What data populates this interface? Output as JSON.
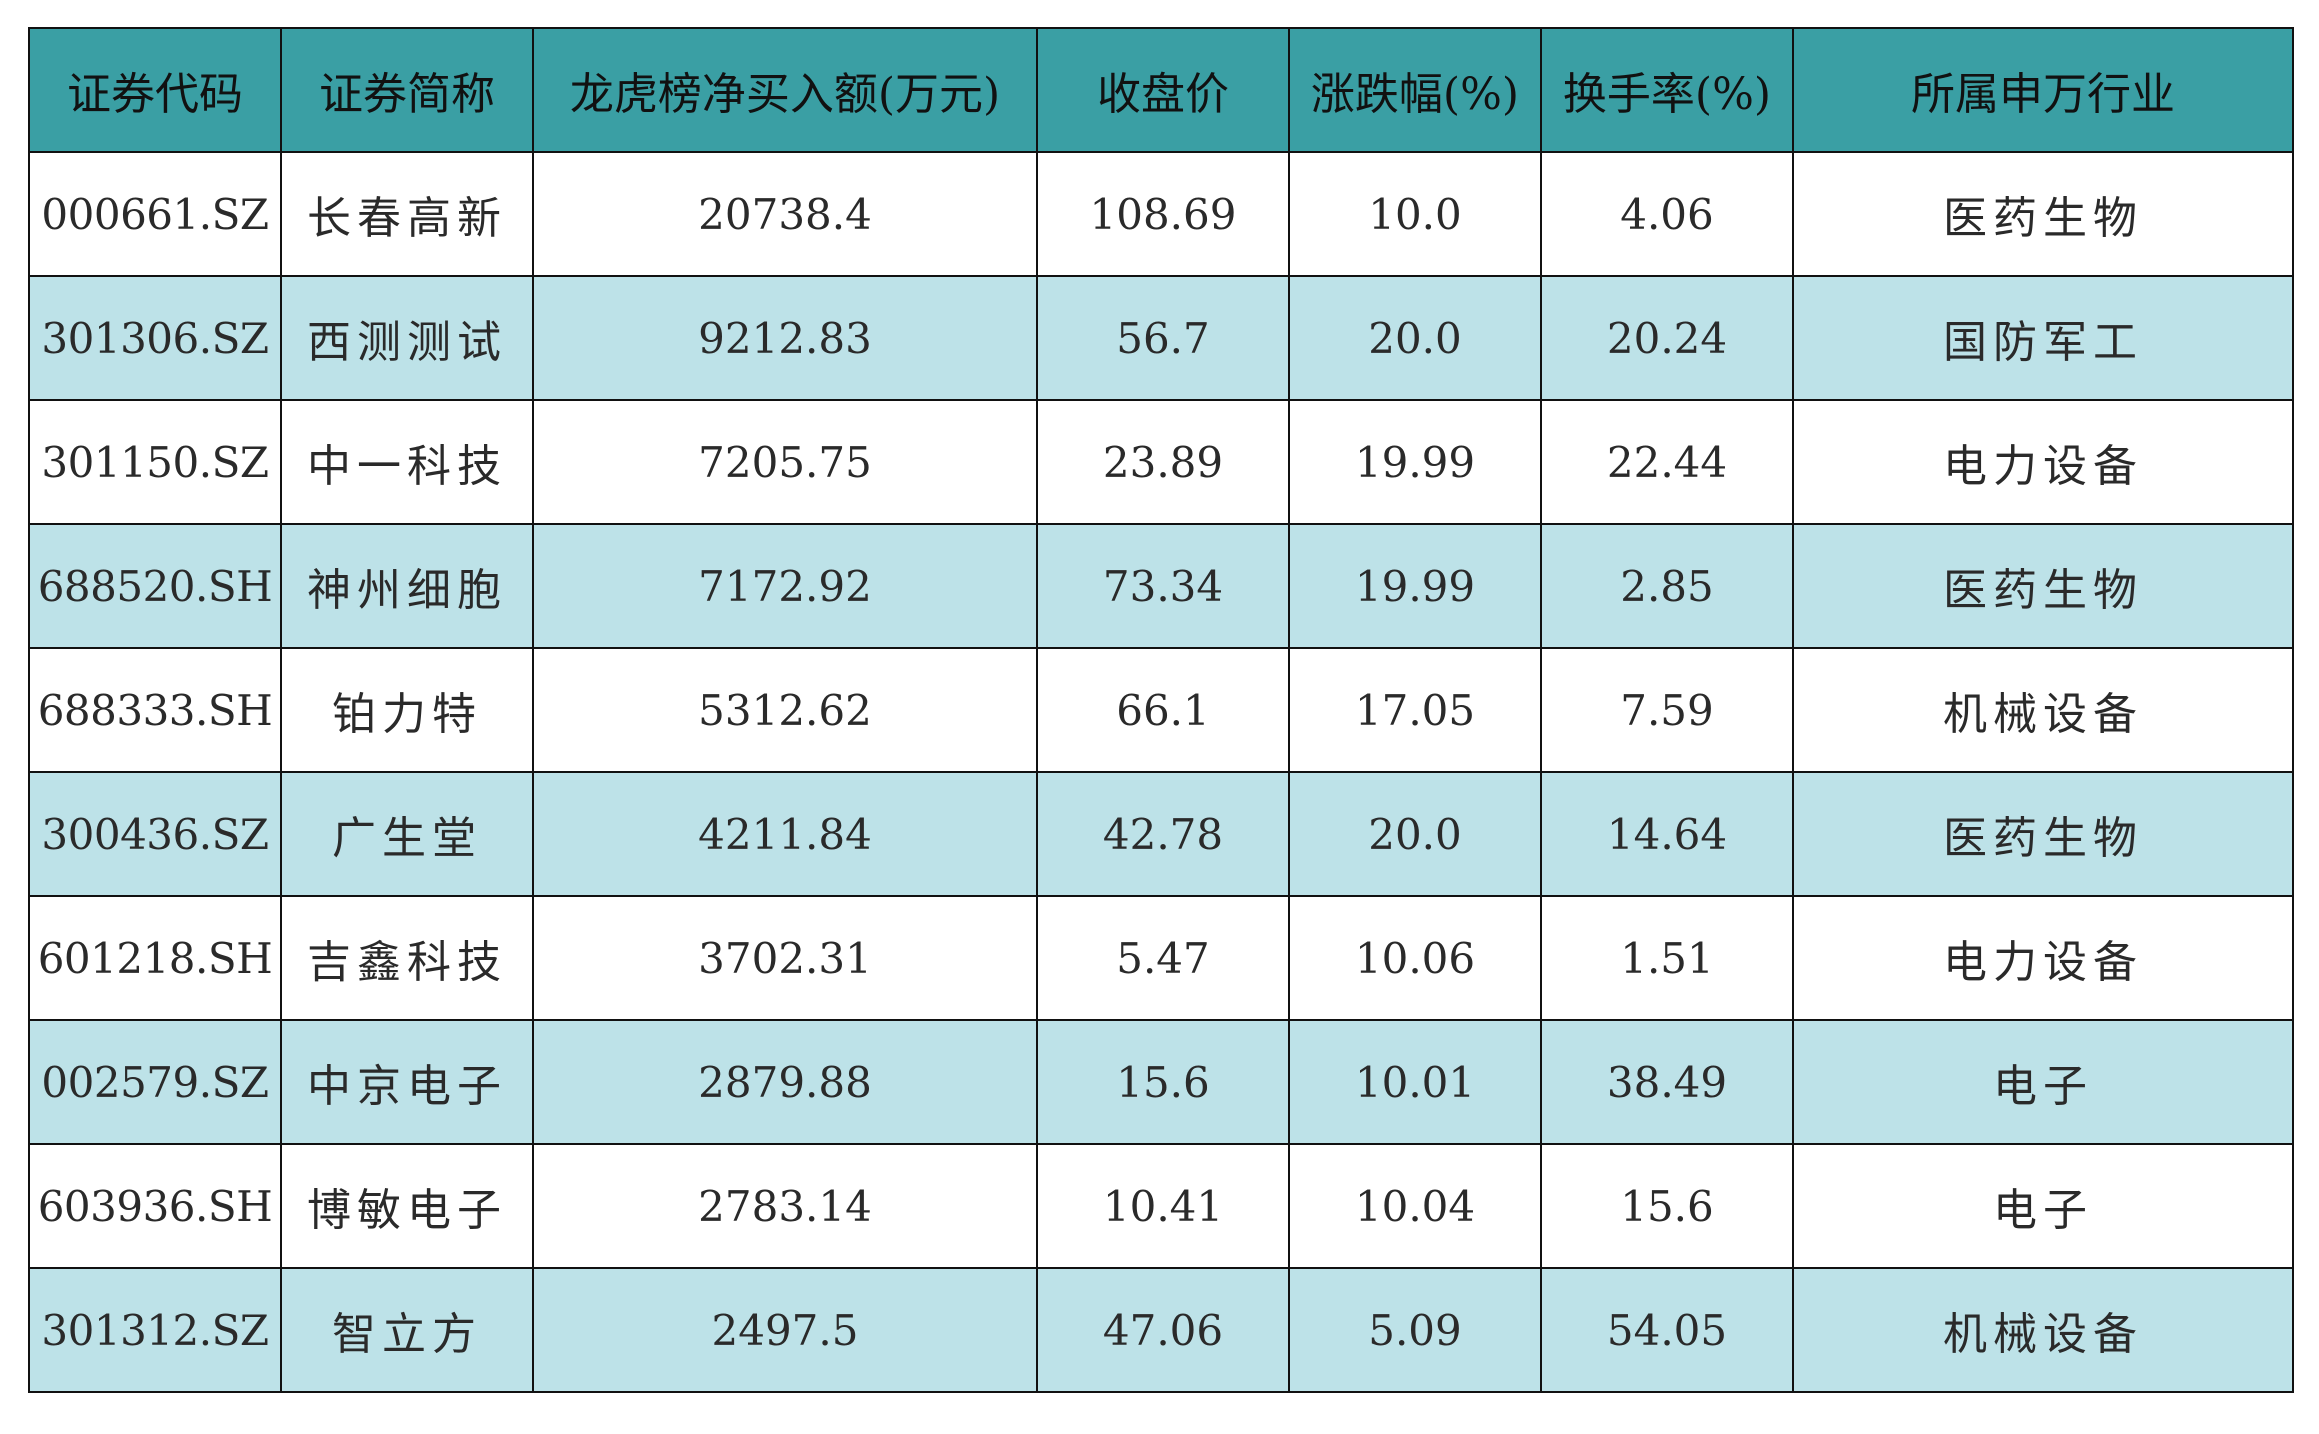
{
  "colors": {
    "header_bg": "#3a9fa4",
    "row_alt_bg": "#bde2e8",
    "row_bg": "#ffffff",
    "border": "#111111"
  },
  "table": {
    "headers": [
      "证券代码",
      "证券简称",
      "龙虎榜净买入额(万元)",
      "收盘价",
      "涨跌幅(%)",
      "换手率(%)",
      "所属申万行业"
    ],
    "rows": [
      [
        "000661.SZ",
        "长春高新",
        "20738.4",
        "108.69",
        "10.0",
        "4.06",
        "医药生物"
      ],
      [
        "301306.SZ",
        "西测测试",
        "9212.83",
        "56.7",
        "20.0",
        "20.24",
        "国防军工"
      ],
      [
        "301150.SZ",
        "中一科技",
        "7205.75",
        "23.89",
        "19.99",
        "22.44",
        "电力设备"
      ],
      [
        "688520.SH",
        "神州细胞",
        "7172.92",
        "73.34",
        "19.99",
        "2.85",
        "医药生物"
      ],
      [
        "688333.SH",
        "铂力特",
        "5312.62",
        "66.1",
        "17.05",
        "7.59",
        "机械设备"
      ],
      [
        "300436.SZ",
        "广生堂",
        "4211.84",
        "42.78",
        "20.0",
        "14.64",
        "医药生物"
      ],
      [
        "601218.SH",
        "吉鑫科技",
        "3702.31",
        "5.47",
        "10.06",
        "1.51",
        "电力设备"
      ],
      [
        "002579.SZ",
        "中京电子",
        "2879.88",
        "15.6",
        "10.01",
        "38.49",
        "电子"
      ],
      [
        "603936.SH",
        "博敏电子",
        "2783.14",
        "10.41",
        "10.04",
        "15.6",
        "电子"
      ],
      [
        "301312.SZ",
        "智立方",
        "2497.5",
        "47.06",
        "5.09",
        "54.05",
        "机械设备"
      ]
    ]
  }
}
